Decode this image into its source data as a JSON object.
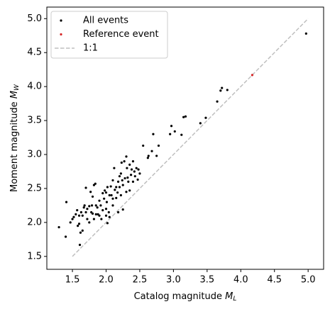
{
  "chart_data": {
    "type": "scatter",
    "xlabel": "Catalog magnitude",
    "xlabel_symbol": "M",
    "xlabel_subscript": "L",
    "ylabel": "Moment magnitude",
    "ylabel_symbol": "M",
    "ylabel_subscript": "W",
    "xlim": [
      1.12,
      5.23
    ],
    "ylim": [
      1.31,
      5.17
    ],
    "xticks": [
      1.5,
      {
        "value": 2,
        "label": "2.0"
      },
      2.5,
      {
        "value": 3,
        "label": "3.0"
      },
      3.5,
      {
        "value": 4,
        "label": "4.0"
      },
      4.5,
      {
        "value": 5,
        "label": "5.0"
      }
    ],
    "yticks": [
      1.5,
      {
        "value": 2,
        "label": "2.0"
      },
      2.5,
      {
        "value": 3,
        "label": "3.0"
      },
      3.5,
      {
        "value": 4,
        "label": "4.0"
      },
      4.5,
      {
        "value": 5,
        "label": "5.0"
      }
    ],
    "legend": "upper left",
    "series": [
      {
        "name": "All events",
        "color": "#000000",
        "x": [
          1.3,
          1.4,
          1.41,
          1.47,
          1.5,
          1.52,
          1.55,
          1.57,
          1.58,
          1.6,
          1.6,
          1.61,
          1.62,
          1.63,
          1.65,
          1.65,
          1.67,
          1.68,
          1.7,
          1.7,
          1.72,
          1.72,
          1.75,
          1.75,
          1.77,
          1.78,
          1.79,
          1.8,
          1.8,
          1.82,
          1.82,
          1.84,
          1.85,
          1.85,
          1.87,
          1.88,
          1.9,
          1.9,
          1.92,
          1.93,
          1.95,
          1.95,
          1.97,
          1.98,
          2.0,
          2.0,
          2.0,
          2.01,
          2.02,
          2.02,
          2.04,
          2.05,
          2.05,
          2.07,
          2.08,
          2.1,
          2.1,
          2.1,
          2.12,
          2.13,
          2.15,
          2.15,
          2.17,
          2.18,
          2.18,
          2.2,
          2.2,
          2.22,
          2.22,
          2.23,
          2.24,
          2.25,
          2.25,
          2.27,
          2.28,
          2.3,
          2.3,
          2.31,
          2.32,
          2.33,
          2.35,
          2.35,
          2.37,
          2.38,
          2.4,
          2.4,
          2.42,
          2.43,
          2.45,
          2.47,
          2.48,
          2.5,
          2.55,
          2.62,
          2.63,
          2.68,
          2.7,
          2.75,
          2.78,
          2.95,
          2.97,
          3.02,
          3.12,
          3.15,
          3.18,
          3.4,
          3.48,
          3.65,
          3.7,
          3.72,
          3.8,
          4.97
        ],
        "y": [
          1.93,
          1.79,
          2.3,
          2.0,
          2.05,
          2.08,
          2.12,
          2.18,
          1.95,
          1.98,
          2.1,
          1.67,
          1.85,
          2.15,
          2.1,
          1.88,
          2.22,
          2.25,
          2.51,
          2.15,
          2.2,
          2.05,
          2.24,
          2.0,
          2.45,
          2.15,
          2.25,
          2.38,
          2.13,
          2.55,
          2.05,
          2.57,
          2.25,
          2.12,
          2.22,
          2.12,
          2.32,
          2.1,
          2.25,
          2.05,
          2.43,
          2.18,
          2.35,
          2.47,
          2.44,
          2.2,
          2.1,
          2.3,
          2.52,
          1.99,
          2.15,
          2.4,
          2.08,
          2.53,
          2.4,
          2.25,
          2.35,
          2.62,
          2.8,
          2.48,
          2.52,
          2.36,
          2.44,
          2.6,
          2.15,
          2.68,
          2.52,
          2.72,
          2.4,
          2.88,
          2.62,
          2.19,
          2.55,
          2.9,
          2.65,
          2.97,
          2.45,
          2.8,
          2.66,
          2.6,
          2.85,
          2.47,
          2.7,
          2.78,
          2.9,
          2.6,
          2.75,
          2.68,
          2.8,
          2.63,
          2.78,
          2.72,
          3.13,
          2.95,
          2.98,
          3.05,
          3.3,
          2.98,
          3.13,
          3.3,
          3.42,
          3.34,
          3.29,
          3.55,
          3.56,
          3.46,
          3.54,
          3.78,
          3.94,
          3.98,
          3.95,
          4.78
        ]
      },
      {
        "name": "Reference event",
        "color": "#d62728",
        "x": [
          4.17
        ],
        "y": [
          4.17
        ]
      }
    ],
    "line": {
      "name": "1:1",
      "color": "#bfbfbf",
      "x": [
        1.5,
        5.0
      ],
      "y": [
        1.5,
        5.0
      ]
    }
  }
}
